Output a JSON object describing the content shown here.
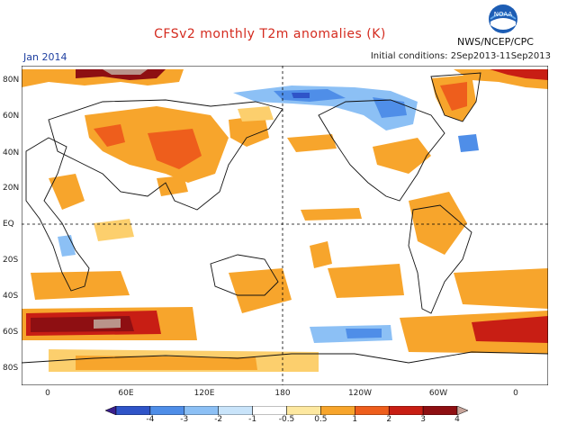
{
  "header": {
    "title": "CFSv2 monthly T2m anomalies (K)",
    "agency": "NWS/NCEP/CPC",
    "logo_text": "NOAA",
    "month": "Jan 2014",
    "initial_conditions": "Initial conditions: 2Sep2013-11Sep2013"
  },
  "map": {
    "lat_labels": [
      "80N",
      "60N",
      "40N",
      "20N",
      "EQ",
      "20S",
      "40S",
      "60S",
      "80S"
    ],
    "lon_labels": [
      "0",
      "60E",
      "120E",
      "180",
      "120W",
      "60W",
      "0"
    ]
  },
  "colorbar": {
    "labels": [
      "-4",
      "-3",
      "-2",
      "-1",
      "-0.5",
      "0.5",
      "1",
      "2",
      "3",
      "4"
    ],
    "colors": [
      "#3a1f8c",
      "#2f54c8",
      "#4f8ee8",
      "#8cc0f5",
      "#c9e4fa",
      "#ffffff",
      "#fde8a0",
      "#f7a52c",
      "#ee5e1c",
      "#c81e14",
      "#8e0f12",
      "#c7a49a"
    ]
  },
  "colors": {
    "warm1": "#fccf6d",
    "warm2": "#f7a52c",
    "warm3": "#ee5e1c",
    "warm4": "#c81e14",
    "warm5": "#8e0f12",
    "warm6": "#b9948a",
    "cool1": "#8cc0f5",
    "cool2": "#4f8ee8",
    "cool3": "#2f54c8"
  }
}
